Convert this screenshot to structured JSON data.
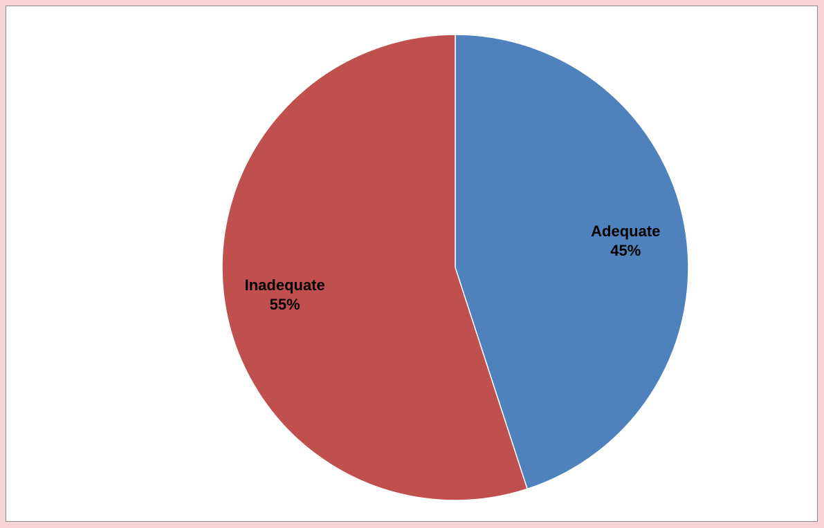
{
  "chart_data": {
    "type": "pie",
    "slices": [
      {
        "label": "Adequate",
        "value": 45,
        "value_label": "45%",
        "color": "#4f81bd"
      },
      {
        "label": "Inadequate",
        "value": 55,
        "value_label": "55%",
        "color": "#c0504d"
      }
    ],
    "start": "12 o'clock",
    "direction": "clockwise",
    "legend": "none"
  },
  "colors": {
    "background": "#f6d3d6",
    "plot_area": "#ffffff",
    "border": "#8a8a8a"
  }
}
